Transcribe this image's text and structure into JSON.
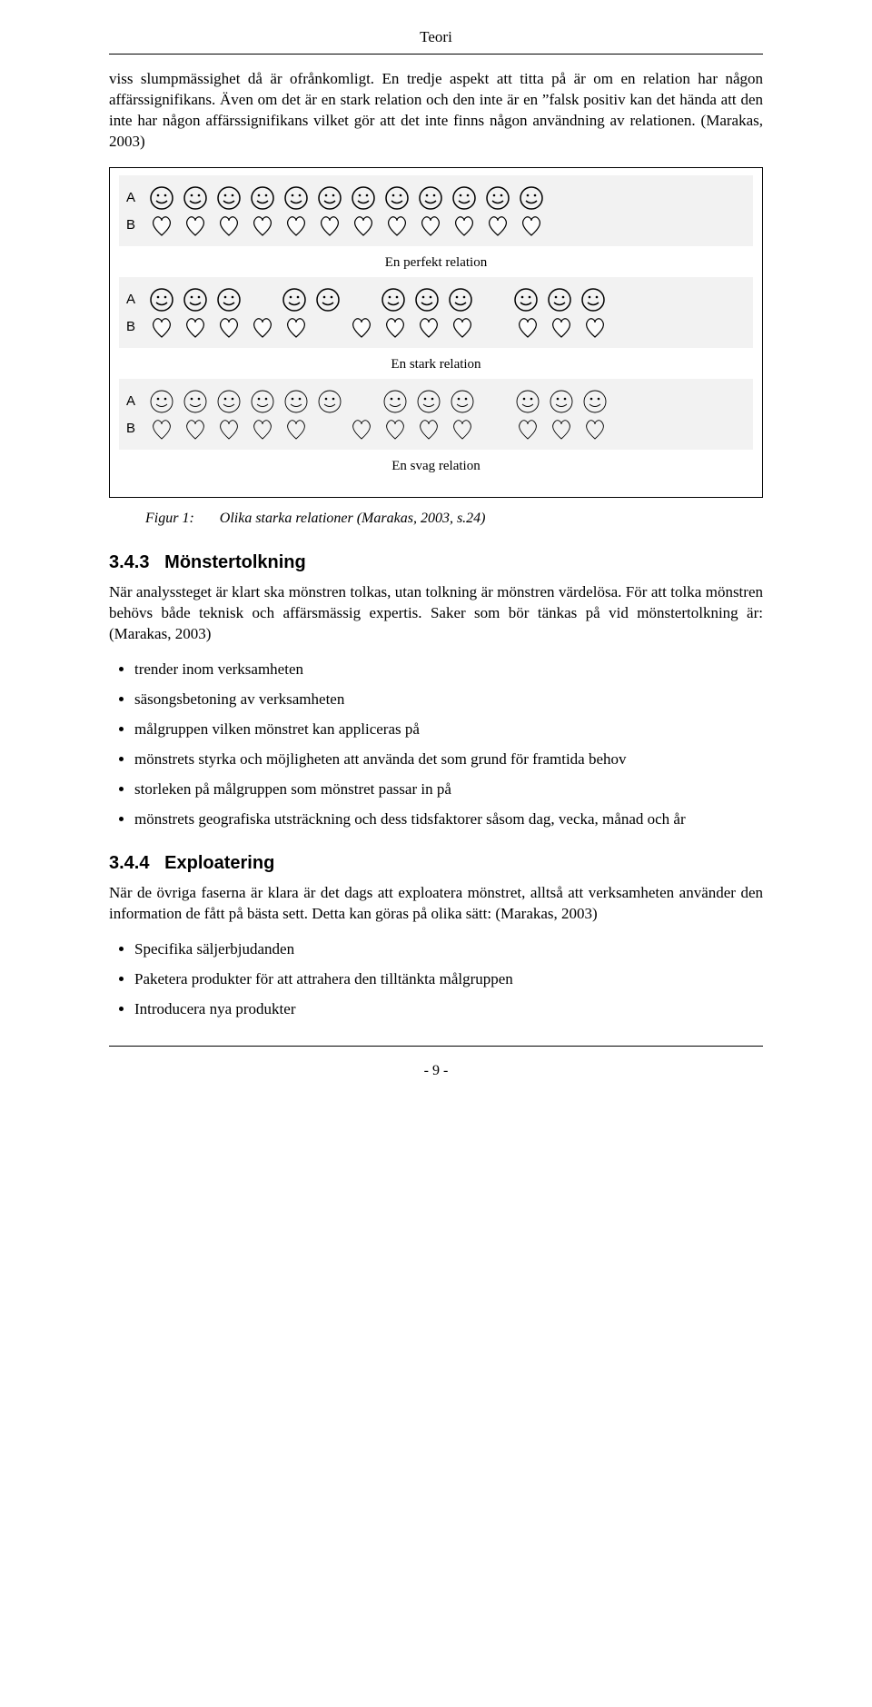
{
  "header": {
    "title": "Teori"
  },
  "para1": "viss slumpmässighet då är ofrånkomligt. En tredje aspekt att titta på är om en relation har någon affärssignifikans. Även om det är en stark relation och den inte är en ”falsk positiv kan det hända att den inte har någon affärssignifikans vilket gör att det inte finns någon användning av relationen. (Marakas, 2003)",
  "figure": {
    "panels": [
      {
        "caption": "En perfekt relation",
        "rows": [
          {
            "label": "A",
            "groups": [
              12
            ],
            "shape": "face",
            "filled": true
          },
          {
            "label": "B",
            "groups": [
              12
            ],
            "shape": "heart",
            "filled": true
          }
        ]
      },
      {
        "caption": "En stark relation",
        "rows": [
          {
            "label": "A",
            "groups": [
              3,
              2,
              3,
              3
            ],
            "shape": "face",
            "filled": true
          },
          {
            "label": "B",
            "groups": [
              5,
              4,
              3
            ],
            "shape": "heart",
            "filled": true
          }
        ]
      },
      {
        "caption": "En svag relation",
        "rows": [
          {
            "label": "A",
            "groups": [
              6,
              3,
              3
            ],
            "shape": "face",
            "filled": false
          },
          {
            "label": "B",
            "groups": [
              5,
              4,
              3
            ],
            "shape": "heart",
            "filled": false
          }
        ]
      }
    ],
    "captionLabel": "Figur 1:",
    "captionText": "Olika starka relationer (Marakas, 2003, s.24)"
  },
  "section343": {
    "num": "3.4.3",
    "title": "Mönstertolkning",
    "para": "När analyssteget är klart ska mönstren tolkas, utan tolkning är mönstren värdelösa. För att tolka mönstren behövs både teknisk och affärsmässig expertis. Saker som bör tänkas på vid mönstertolkning är: (Marakas, 2003)",
    "bullets": [
      "trender inom verksamheten",
      "säsongsbetoning av verksamheten",
      "målgruppen vilken mönstret kan appliceras på",
      "mönstrets styrka och möjligheten att använda det som grund för framtida behov",
      "storleken på målgruppen som mönstret passar in på",
      "mönstrets geografiska utsträckning och dess tidsfaktorer såsom dag, vecka, månad och år"
    ]
  },
  "section344": {
    "num": "3.4.4",
    "title": "Exploatering",
    "para": "När de övriga faserna är klara är det dags att exploatera mönstret, alltså att verksamheten använder den information de fått på bästa sett. Detta kan göras på olika sätt: (Marakas, 2003)",
    "bullets": [
      "Specifika säljerbjudanden",
      "Paketera produkter för att attrahera den tilltänkta målgruppen",
      "Introducera nya produkter"
    ]
  },
  "footer": {
    "pagenum": "- 9 -"
  }
}
